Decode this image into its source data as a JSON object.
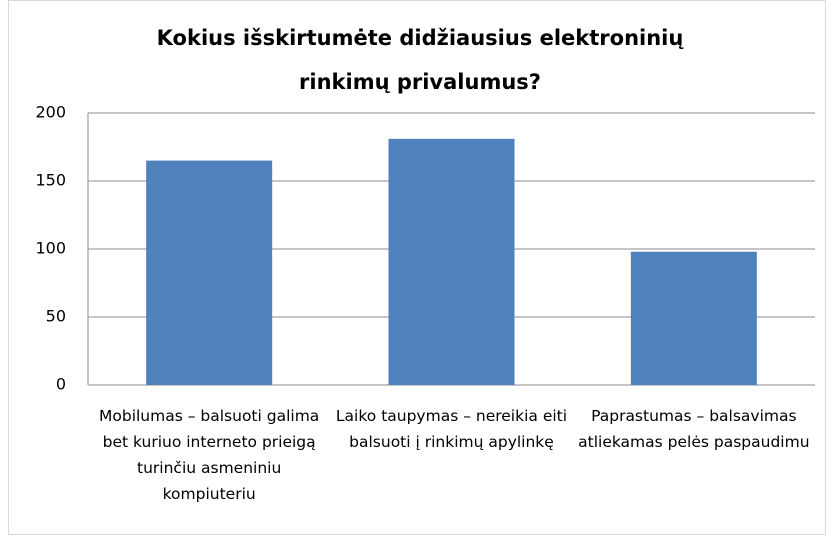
{
  "chart_data": {
    "type": "bar",
    "title": "Kokius išskirtumėte didžiausius elektroninių rinkimų privalumus?",
    "categories": [
      "Mobilumas – balsuoti galima bet kuriuo interneto prieigą turinčiu asmeniniu kompiuteriu",
      "Laiko taupymas – nereikia eiti balsuoti į rinkimų apylinkę",
      "Paprastumas – balsavimas atliekamas pelės paspaudimu"
    ],
    "values": [
      165,
      181,
      98
    ],
    "color": "#4f81bd",
    "ylim": [
      0,
      200
    ],
    "yticks": [
      0,
      50,
      100,
      150,
      200
    ],
    "grid": true
  }
}
